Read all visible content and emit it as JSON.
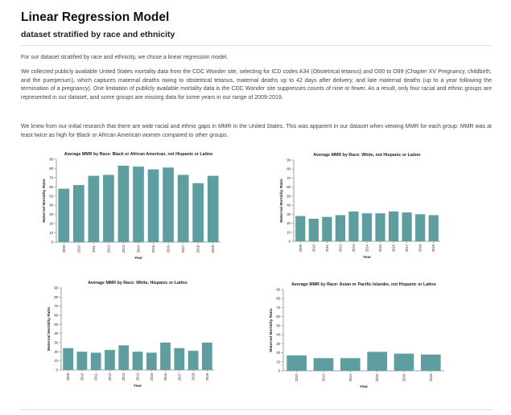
{
  "header": {
    "title": "Linear Regression Model",
    "subtitle": "dataset stratified by race and ethnicity"
  },
  "body": {
    "p1": "For our dataset stratified by race and ethnicity, we chose a linear regression model.",
    "p2": "We collected publicly available United States mortality data from the CDC Wonder site, selecting for ICD codes A34 (Obstetrical tetanus) and O00 to O99 (Chapter XV Pregnancy, childbirth, and the puerperium), which captures maternal deaths owing to obstetrical tetanus, maternal deaths up to 42 days after delivery, and late maternal deaths (up to a year following the termination of a pregnancy). One limitation of publicly available mortality data is the CDC Wonder site suppresses counts of nine or fewer. As a result, only four racial and ethnic groups are represented in our dataset, and some groups are missing data for some years in our range of 2009-2019.",
    "p3": "We knew from our initial research that there are wide racial and ethnic gaps in MMR in the United States. This was apparent in our dataset when viewing MMR for each group: MMR was at least twice as high for Black or African American women compared to other groups."
  },
  "colors": {
    "bar": "#5f9ea0",
    "axis": "#888888"
  },
  "chart_data": [
    {
      "type": "bar",
      "title": "Average MMR by Race: Black or African American, not Hispanic or Latino",
      "xlabel": "Year",
      "ylabel": "Maternal Mortality Ratio",
      "ylim": [
        0,
        90
      ],
      "yticks": [
        0,
        10,
        20,
        30,
        40,
        50,
        60,
        70,
        80,
        90
      ],
      "categories": [
        "2009",
        "2010",
        "2011",
        "2012",
        "2013",
        "2014",
        "2015",
        "2016",
        "2017",
        "2018",
        "2019"
      ],
      "values": [
        58,
        62,
        72,
        73,
        83,
        82,
        79,
        81,
        73,
        64,
        72
      ]
    },
    {
      "type": "bar",
      "title": "Average MMR by Race: White, not Hispanic or Latino",
      "xlabel": "Year",
      "ylabel": "Maternal Mortality Ratio",
      "ylim": [
        0,
        90
      ],
      "yticks": [
        0,
        10,
        20,
        30,
        40,
        50,
        60,
        70,
        80,
        90
      ],
      "categories": [
        "2009",
        "2010",
        "2011",
        "2012",
        "2013",
        "2014",
        "2015",
        "2016",
        "2017",
        "2018",
        "2019"
      ],
      "values": [
        28,
        25,
        27,
        29,
        33,
        31,
        31,
        33,
        32,
        30,
        29
      ]
    },
    {
      "type": "bar",
      "title": "Average MMR by Race: White, Hispanic or Latino",
      "xlabel": "Year",
      "ylabel": "Maternal Mortality Ratio",
      "ylim": [
        0,
        90
      ],
      "yticks": [
        0,
        10,
        20,
        30,
        40,
        50,
        60,
        70,
        80,
        90
      ],
      "categories": [
        "2009",
        "2010",
        "2011",
        "2012",
        "2013",
        "2014",
        "2015",
        "2016",
        "2017",
        "2018",
        "2019"
      ],
      "values": [
        24,
        20,
        19,
        22,
        27,
        20,
        19,
        30,
        24,
        21,
        30
      ]
    },
    {
      "type": "bar",
      "title": "Average MMR by Race: Asian or Pacific Islander, not Hispanic or Latino",
      "xlabel": "Year",
      "ylabel": "Maternal Mortality Ratio",
      "ylim": [
        0,
        90
      ],
      "yticks": [
        0,
        10,
        20,
        30,
        40,
        50,
        60,
        70,
        80,
        90
      ],
      "categories": [
        "2010",
        "2013",
        "2014",
        "2016",
        "2018",
        "2019"
      ],
      "values": [
        17,
        14,
        14,
        21,
        19,
        18
      ]
    }
  ]
}
